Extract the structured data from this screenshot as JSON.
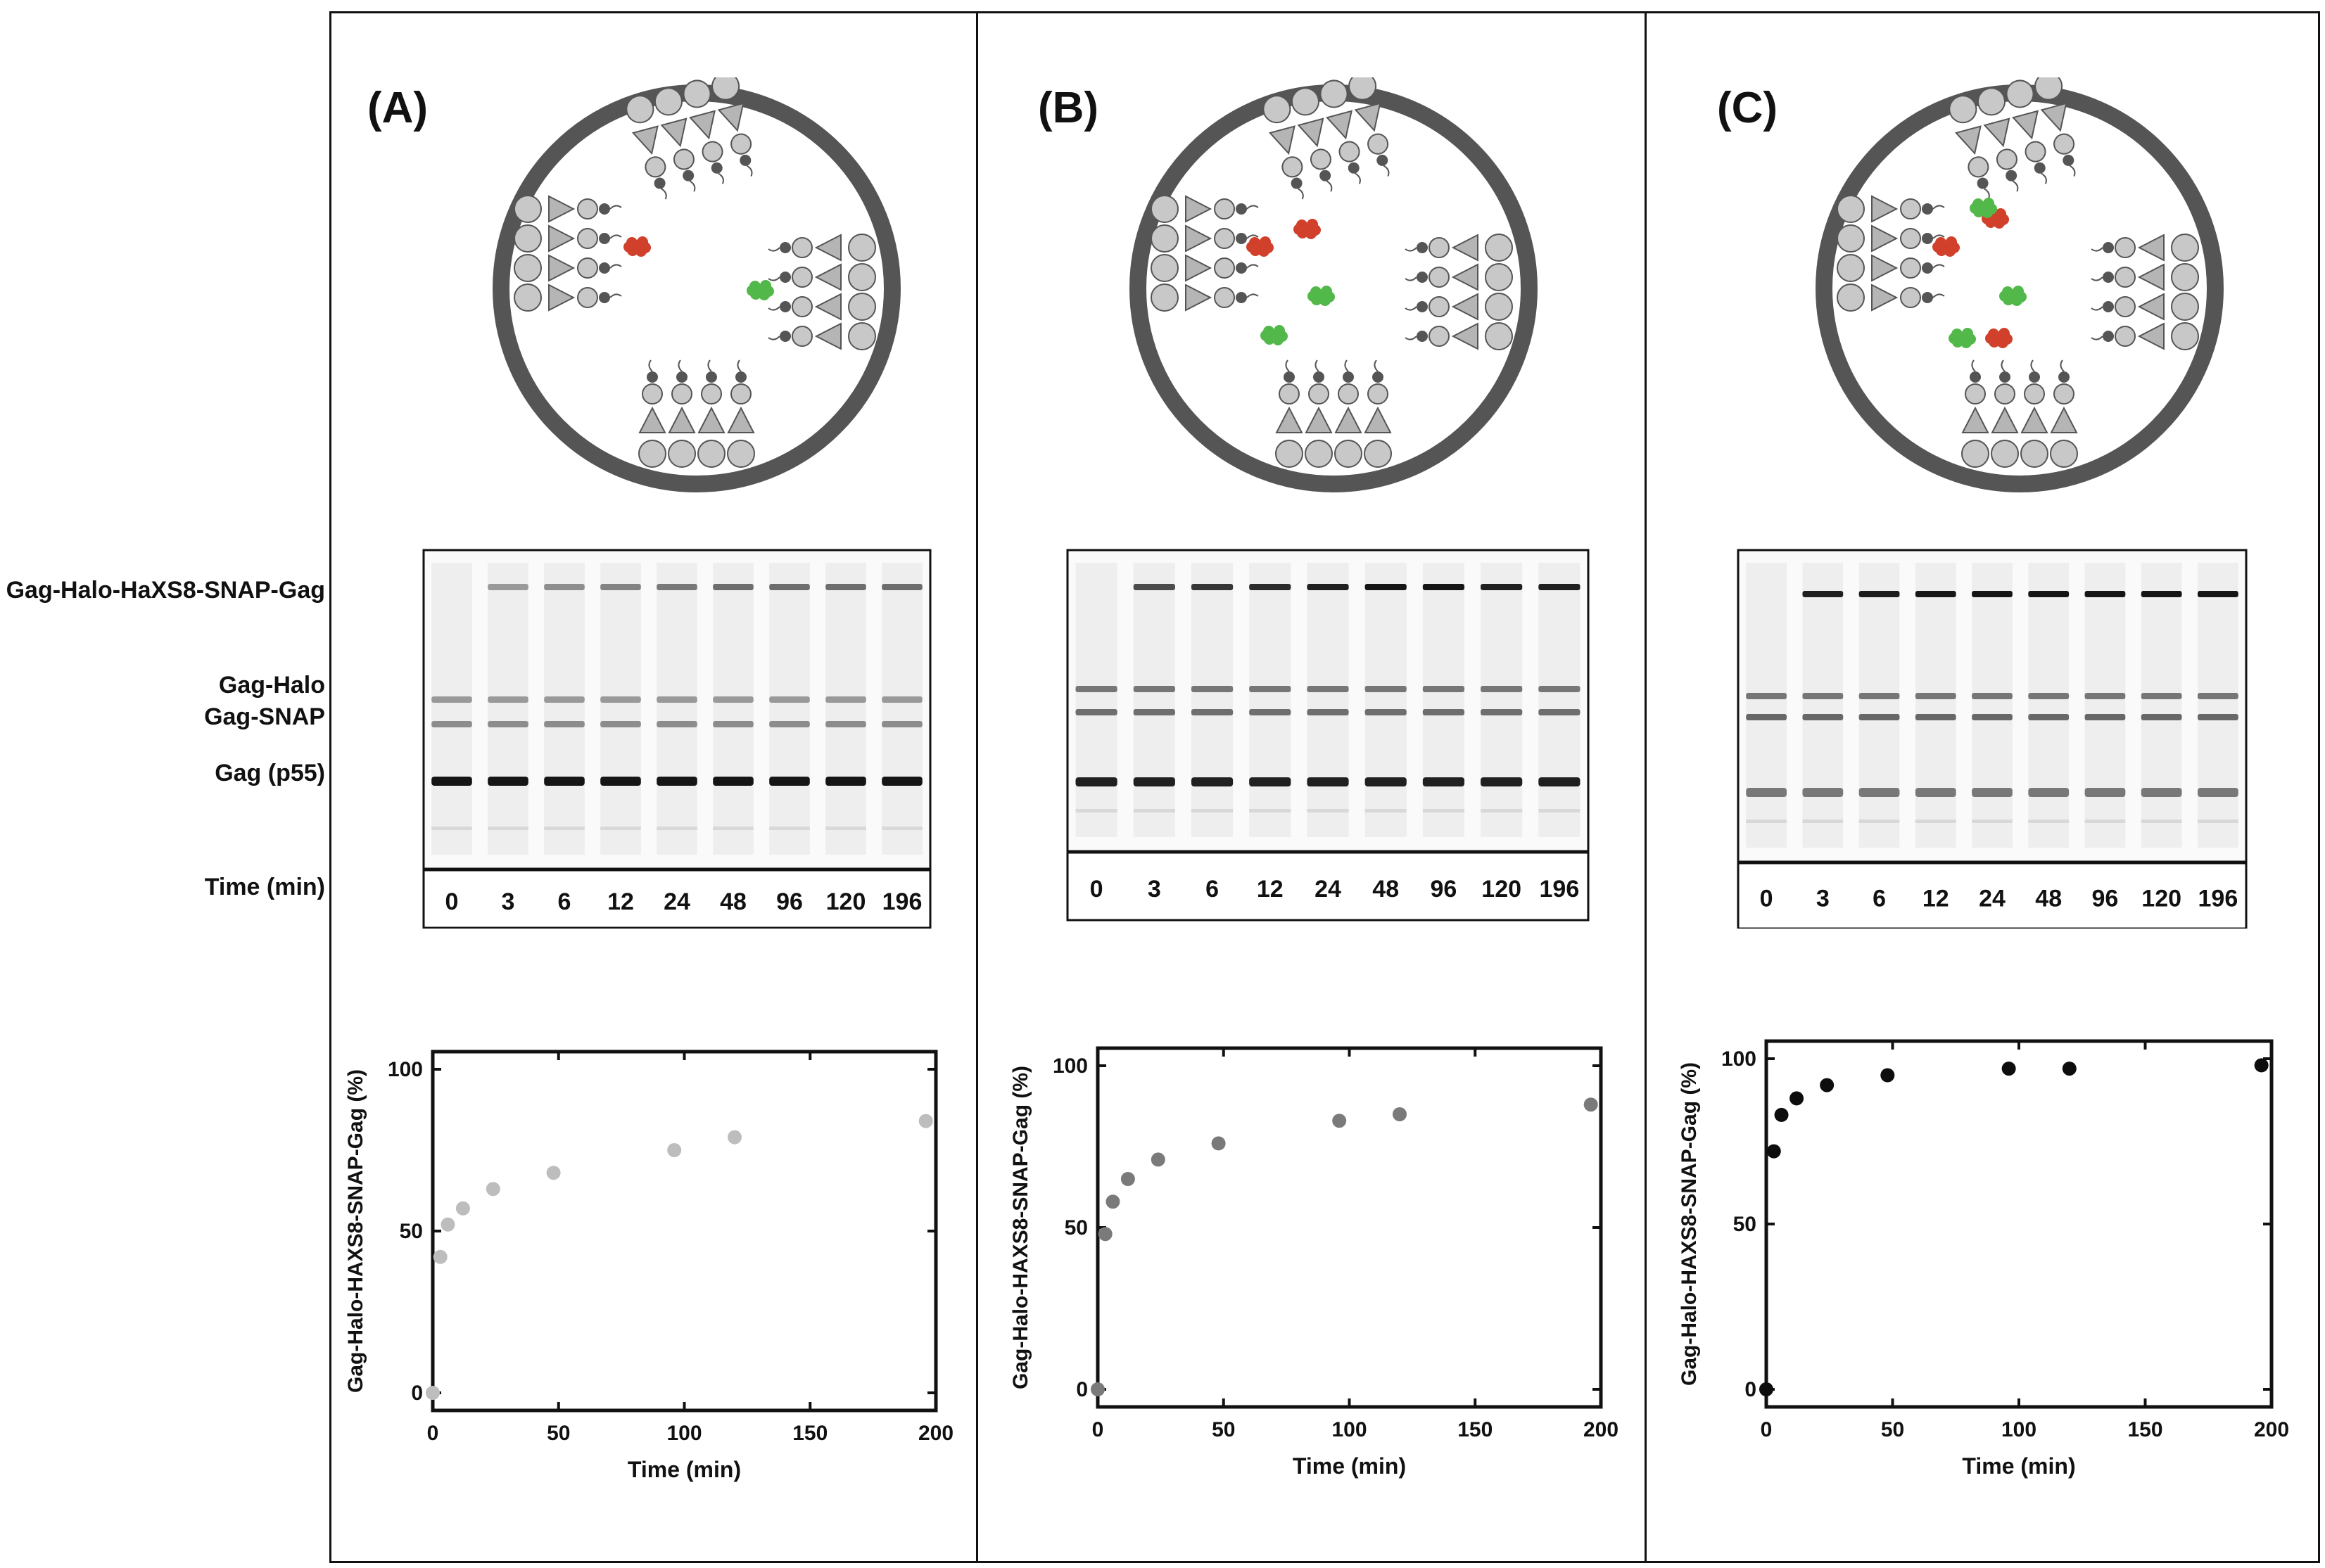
{
  "figure": {
    "row_labels": {
      "dimer": "Gag-Halo-HaXS8-SNAP-Gag",
      "gag_halo": "Gag-Halo",
      "gag_snap": "Gag-SNAP",
      "gag_p55": "Gag (p55)",
      "time": "Time (min)"
    },
    "panels": [
      {
        "label": "(A)",
        "lanes": [
          "0",
          "3",
          "6",
          "12",
          "24",
          "48",
          "96",
          "120",
          "196"
        ]
      },
      {
        "label": "(B)",
        "lanes": [
          "0",
          "3",
          "6",
          "12",
          "24",
          "48",
          "96",
          "120",
          "196"
        ]
      },
      {
        "label": "(C)",
        "lanes": [
          "0",
          "3",
          "6",
          "12",
          "24",
          "48",
          "96",
          "120",
          "196"
        ]
      }
    ],
    "colors": {
      "gray_a": "#bdbdbd",
      "gray_b": "#7a7a7a",
      "black_c": "#0d0d0d",
      "ring": "#555555",
      "red": "#d0402a",
      "green": "#52b84a"
    }
  },
  "chart_data": [
    {
      "type": "scatter",
      "title": "",
      "xlabel": "Time (min)",
      "ylabel": "Gag-Halo-HAXS8-SNAP-Gag (%)",
      "xlim": [
        0,
        200
      ],
      "ylim": [
        0,
        100
      ],
      "xticks": [
        0,
        50,
        100,
        150,
        200
      ],
      "yticks": [
        0,
        50,
        100
      ],
      "x": [
        0,
        3,
        6,
        12,
        24,
        48,
        96,
        120,
        196
      ],
      "y": [
        0,
        42,
        52,
        57,
        63,
        68,
        75,
        79,
        84
      ],
      "color": "#bdbdbd"
    },
    {
      "type": "scatter",
      "title": "",
      "xlabel": "Time (min)",
      "ylabel": "Gag-Halo-HAXS8-SNAP-Gag (%)",
      "xlim": [
        0,
        200
      ],
      "ylim": [
        0,
        100
      ],
      "xticks": [
        0,
        50,
        100,
        150,
        200
      ],
      "yticks": [
        0,
        50,
        100
      ],
      "x": [
        0,
        3,
        6,
        12,
        24,
        48,
        96,
        120,
        196
      ],
      "y": [
        0,
        48,
        58,
        65,
        71,
        76,
        83,
        85,
        88
      ],
      "color": "#7a7a7a"
    },
    {
      "type": "scatter",
      "title": "",
      "xlabel": "Time (min)",
      "ylabel": "Gag-Halo-HAXS8-SNAP-Gag (%)",
      "xlim": [
        0,
        200
      ],
      "ylim": [
        0,
        100
      ],
      "xticks": [
        0,
        50,
        100,
        150,
        200
      ],
      "yticks": [
        0,
        50,
        100
      ],
      "x": [
        0,
        3,
        6,
        12,
        24,
        48,
        96,
        120,
        196
      ],
      "y": [
        0,
        72,
        83,
        88,
        92,
        95,
        97,
        97,
        98
      ],
      "color": "#0d0d0d"
    }
  ]
}
